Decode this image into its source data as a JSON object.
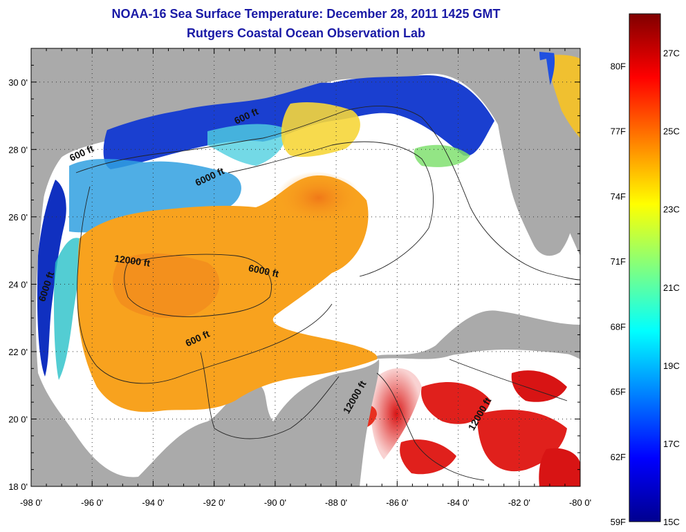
{
  "title_line1": "NOAA-16 Sea Surface Temperature:  December 28, 2011 1425 GMT",
  "title_line2": "Rutgers Coastal Ocean Observation Lab",
  "lat_labels": [
    "30 0'",
    "28 0'",
    "26 0'",
    "24 0'",
    "22 0'",
    "20 0'",
    "18 0'"
  ],
  "lat_values": [
    30,
    28,
    26,
    24,
    22,
    20,
    18
  ],
  "lon_labels": [
    "-98 0'",
    "-96 0'",
    "-94 0'",
    "-92 0'",
    "-90 0'",
    "-88 0'",
    "-86 0'",
    "-84 0'",
    "-82 0'",
    "-80 0'"
  ],
  "lon_values": [
    -98,
    -96,
    -94,
    -92,
    -90,
    -88,
    -86,
    -84,
    -82,
    -80
  ],
  "lat_range": [
    18,
    31
  ],
  "lon_range": [
    -98,
    -80
  ],
  "contour_labels": [
    {
      "text": "600 ft",
      "lon": -90.9,
      "lat": 28.9
    },
    {
      "text": "600 ft",
      "lon": -96.3,
      "lat": 27.8
    },
    {
      "text": "6000 ft",
      "lon": -92.1,
      "lat": 27.1
    },
    {
      "text": "12000 ft",
      "lon": -94.7,
      "lat": 24.6
    },
    {
      "text": "6000 ft",
      "lon": -90.4,
      "lat": 24.3
    },
    {
      "text": "6000 ft",
      "lon": -97.4,
      "lat": 23.9
    },
    {
      "text": "600 ft",
      "lon": -92.5,
      "lat": 22.3
    },
    {
      "text": "12000 ft",
      "lon": -87.3,
      "lat": 20.6
    },
    {
      "text": "12000 ft",
      "lon": -83.2,
      "lat": 20.1
    }
  ],
  "colorbar": {
    "f_labels": [
      "80F",
      "77F",
      "74F",
      "71F",
      "68F",
      "65F",
      "62F",
      "59F"
    ],
    "f_values": [
      80,
      77,
      74,
      71,
      68,
      65,
      62,
      59
    ],
    "c_labels": [
      "27C",
      "25C",
      "23C",
      "21C",
      "19C",
      "17C",
      "15C"
    ],
    "c_values": [
      27,
      25,
      23,
      21,
      19,
      17,
      15
    ],
    "range_f": [
      59,
      82.4
    ],
    "colors": [
      "#00008f",
      "#0000ff",
      "#0080ff",
      "#00ffff",
      "#80ff80",
      "#ffff00",
      "#ff8000",
      "#ff0000",
      "#800000"
    ]
  },
  "colors": {
    "land": "#aaaaaa",
    "cloud": "#ffffff",
    "cold_shelf": "#1a3fd0",
    "warm_gulf": "#f8a21e",
    "caribbean": "#e0201c"
  }
}
